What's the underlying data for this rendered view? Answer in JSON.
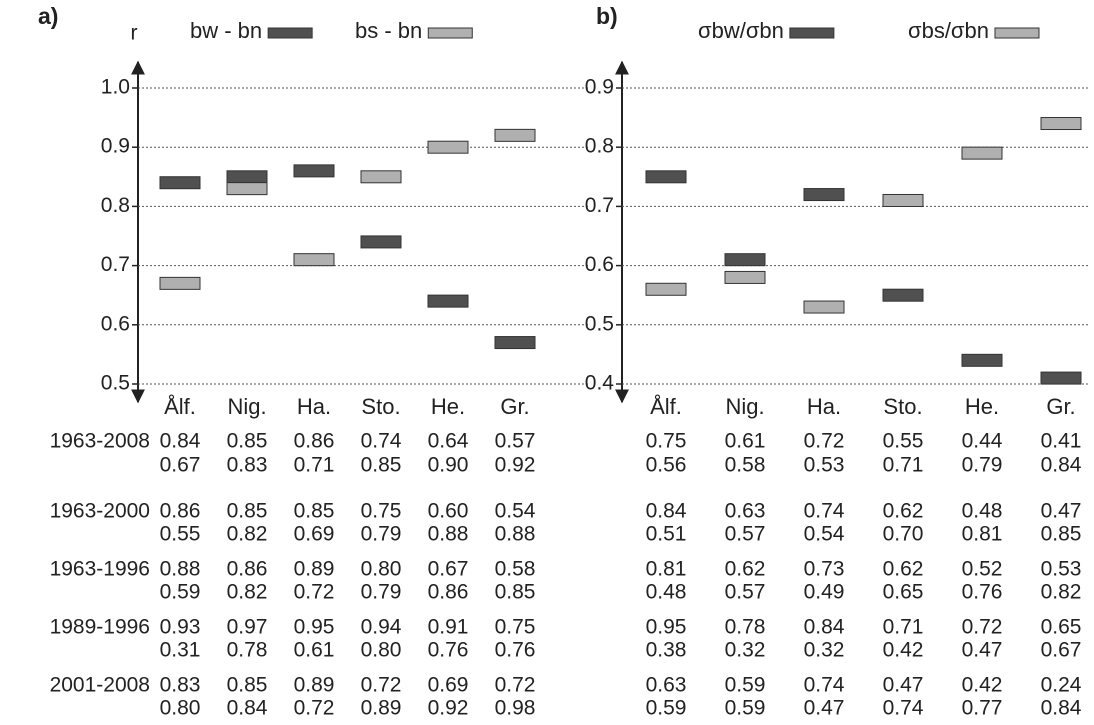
{
  "chart_data": [
    {
      "type": "floating-bar",
      "panel": "a)",
      "ylabel": "r",
      "categories": [
        "Ålf.",
        "Nig.",
        "Ha.",
        "Sto.",
        "He.",
        "Gr."
      ],
      "series": [
        {
          "name": "bw - bn",
          "color": "#505050",
          "values": [
            0.84,
            0.85,
            0.86,
            0.74,
            0.64,
            0.57
          ]
        },
        {
          "name": "bs - bn",
          "color": "#b0b0b0",
          "values": [
            0.67,
            0.83,
            0.71,
            0.85,
            0.9,
            0.92
          ]
        }
      ],
      "ylim": [
        0.5,
        1.0
      ],
      "yticks": [
        0.5,
        0.6,
        0.7,
        0.8,
        0.9,
        {
          "value": 1.0,
          "label": "1.0"
        }
      ],
      "grid": true,
      "legend": "top"
    },
    {
      "type": "floating-bar",
      "panel": "b)",
      "categories": [
        "Ålf.",
        "Nig.",
        "Ha.",
        "Sto.",
        "He.",
        "Gr."
      ],
      "series": [
        {
          "name": "σbw/σbn",
          "color": "#505050",
          "values": [
            0.75,
            0.61,
            0.72,
            0.55,
            0.44,
            0.41
          ]
        },
        {
          "name": "σbs/σbn",
          "color": "#b0b0b0",
          "values": [
            0.56,
            0.58,
            0.53,
            0.71,
            0.79,
            0.84
          ]
        }
      ],
      "ylim": [
        0.4,
        0.9
      ],
      "yticks": [
        0.4,
        0.5,
        0.6,
        0.7,
        0.8,
        0.9
      ],
      "grid": true,
      "legend": "top"
    }
  ],
  "table": {
    "rows": [
      {
        "label": "1963-2008",
        "a": [
          [
            "0.84",
            "0.85",
            "0.86",
            "0.74",
            "0.64",
            "0.57"
          ],
          [
            "0.67",
            "0.83",
            "0.71",
            "0.85",
            "0.90",
            "0.92"
          ]
        ],
        "b": [
          [
            "0.75",
            "0.61",
            "0.72",
            "0.55",
            "0.44",
            "0.41"
          ],
          [
            "0.56",
            "0.58",
            "0.53",
            "0.71",
            "0.79",
            "0.84"
          ]
        ]
      },
      {
        "label": "1963-2000",
        "a": [
          [
            "0.86",
            "0.85",
            "0.85",
            "0.75",
            "0.60",
            "0.54"
          ],
          [
            "0.55",
            "0.82",
            "0.69",
            "0.79",
            "0.88",
            "0.88"
          ]
        ],
        "b": [
          [
            "0.84",
            "0.63",
            "0.74",
            "0.62",
            "0.48",
            "0.47"
          ],
          [
            "0.51",
            "0.57",
            "0.54",
            "0.70",
            "0.81",
            "0.85"
          ]
        ]
      },
      {
        "label": "1963-1996",
        "a": [
          [
            "0.88",
            "0.86",
            "0.89",
            "0.80",
            "0.67",
            "0.58"
          ],
          [
            "0.59",
            "0.82",
            "0.72",
            "0.79",
            "0.86",
            "0.85"
          ]
        ],
        "b": [
          [
            "0.81",
            "0.62",
            "0.73",
            "0.62",
            "0.52",
            "0.53"
          ],
          [
            "0.48",
            "0.57",
            "0.49",
            "0.65",
            "0.76",
            "0.82"
          ]
        ]
      },
      {
        "label": "1989-1996",
        "a": [
          [
            "0.93",
            "0.97",
            "0.95",
            "0.94",
            "0.91",
            "0.75"
          ],
          [
            "0.31",
            "0.78",
            "0.61",
            "0.80",
            "0.76",
            "0.76"
          ]
        ],
        "b": [
          [
            "0.95",
            "0.78",
            "0.84",
            "0.71",
            "0.72",
            "0.65"
          ],
          [
            "0.38",
            "0.32",
            "0.32",
            "0.42",
            "0.47",
            "0.67"
          ]
        ]
      },
      {
        "label": "2001-2008",
        "a": [
          [
            "0.83",
            "0.85",
            "0.89",
            "0.72",
            "0.69",
            "0.72"
          ],
          [
            "0.80",
            "0.84",
            "0.72",
            "0.89",
            "0.92",
            "0.98"
          ]
        ],
        "b": [
          [
            "0.63",
            "0.59",
            "0.74",
            "0.47",
            "0.42",
            "0.24"
          ],
          [
            "0.59",
            "0.59",
            "0.47",
            "0.74",
            "0.77",
            "0.84"
          ]
        ]
      }
    ]
  }
}
